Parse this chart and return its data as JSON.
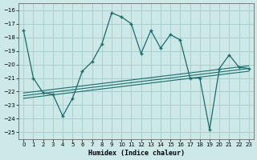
{
  "xlabel": "Humidex (Indice chaleur)",
  "ylabel": "",
  "xlim": [
    -0.5,
    23.5
  ],
  "ylim": [
    -25.5,
    -15.5
  ],
  "yticks": [
    -25,
    -24,
    -23,
    -22,
    -21,
    -20,
    -19,
    -18,
    -17,
    -16
  ],
  "xticks": [
    0,
    1,
    2,
    3,
    4,
    5,
    6,
    7,
    8,
    9,
    10,
    11,
    12,
    13,
    14,
    15,
    16,
    17,
    18,
    19,
    20,
    21,
    22,
    23
  ],
  "bg_color": "#cce9e8",
  "grid_color": "#aacfce",
  "line_color": "#1a6b6b",
  "main_curve_x": [
    0,
    1,
    2,
    3,
    4,
    5,
    6,
    7,
    8,
    9,
    10,
    11,
    12,
    13,
    14,
    15,
    16,
    17,
    18,
    19,
    20,
    21,
    22,
    23
  ],
  "main_curve_y": [
    -17.5,
    -21.0,
    -22.1,
    -22.2,
    -23.8,
    -22.5,
    -20.5,
    -19.8,
    -18.5,
    -16.2,
    -16.5,
    -17.0,
    -19.2,
    -17.5,
    -18.8,
    -17.8,
    -18.2,
    -21.0,
    -21.0,
    -24.8,
    -20.3,
    -19.3,
    -20.2,
    -20.3
  ],
  "line2_x": [
    0,
    23
  ],
  "line2_y": [
    -22.1,
    -20.1
  ],
  "line3_x": [
    0,
    23
  ],
  "line3_y": [
    -22.3,
    -20.3
  ],
  "line4_x": [
    0,
    23
  ],
  "line4_y": [
    -22.5,
    -20.5
  ]
}
